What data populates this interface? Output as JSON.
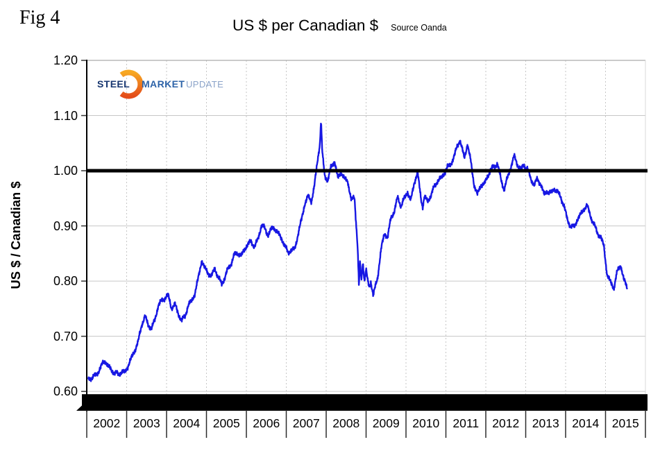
{
  "header": {
    "fig_label": "Fig 4",
    "title": "US $ per Canadian $",
    "source": "Source Oanda"
  },
  "logo": {
    "words": {
      "first": "STEEL",
      "second": "MARKET",
      "third": "UPDATE"
    },
    "colors": {
      "steel": "#16356f",
      "market": "#2d63a8",
      "update": "#8ba3c9",
      "swoosh_top": "#f7a823",
      "swoosh_bottom": "#e44d1a"
    }
  },
  "chart_data": {
    "type": "line",
    "title": "US $ per Canadian $",
    "source": "Source Oanda",
    "ylabel": "US $ / Canadian $",
    "xlabel": "",
    "ylim": [
      0.565,
      1.2
    ],
    "xlim": [
      2002,
      2016
    ],
    "yticks": [
      1.2,
      1.1,
      1.0,
      0.9,
      0.8,
      0.7,
      0.6
    ],
    "ytick_labels": [
      "1.20",
      "1.10",
      "1.00",
      "0.90",
      "0.80",
      "0.70",
      "0.60"
    ],
    "x_years": [
      "2002",
      "2003",
      "2004",
      "2005",
      "2006",
      "2007",
      "2008",
      "2009",
      "2010",
      "2011",
      "2012",
      "2013",
      "2014",
      "2015"
    ],
    "grid": {
      "horizontal": "solid",
      "vertical": "dashed",
      "color": "#c6c6c6"
    },
    "reference_line": {
      "value": 1.0,
      "color": "#000000",
      "thickness_px": 5
    },
    "bottom_bar": {
      "value_top": 0.595,
      "value_bottom": 0.565,
      "color": "#000000"
    },
    "series": [
      {
        "name": "US $ per Canadian $",
        "color": "#1717e3",
        "anchors": [
          [
            2002.04,
            0.622
          ],
          [
            2002.12,
            0.625
          ],
          [
            2002.21,
            0.628
          ],
          [
            2002.29,
            0.636
          ],
          [
            2002.38,
            0.648
          ],
          [
            2002.46,
            0.656
          ],
          [
            2002.54,
            0.645
          ],
          [
            2002.63,
            0.638
          ],
          [
            2002.71,
            0.633
          ],
          [
            2002.79,
            0.631
          ],
          [
            2002.88,
            0.636
          ],
          [
            2002.96,
            0.634
          ],
          [
            2003.04,
            0.648
          ],
          [
            2003.12,
            0.66
          ],
          [
            2003.21,
            0.676
          ],
          [
            2003.29,
            0.69
          ],
          [
            2003.38,
            0.722
          ],
          [
            2003.46,
            0.736
          ],
          [
            2003.54,
            0.72
          ],
          [
            2003.63,
            0.715
          ],
          [
            2003.71,
            0.73
          ],
          [
            2003.79,
            0.756
          ],
          [
            2003.88,
            0.764
          ],
          [
            2003.96,
            0.77
          ],
          [
            2004.04,
            0.774
          ],
          [
            2004.12,
            0.752
          ],
          [
            2004.21,
            0.757
          ],
          [
            2004.29,
            0.742
          ],
          [
            2004.38,
            0.728
          ],
          [
            2004.46,
            0.736
          ],
          [
            2004.54,
            0.756
          ],
          [
            2004.63,
            0.764
          ],
          [
            2004.71,
            0.778
          ],
          [
            2004.79,
            0.803
          ],
          [
            2004.88,
            0.838
          ],
          [
            2004.96,
            0.822
          ],
          [
            2005.04,
            0.816
          ],
          [
            2005.12,
            0.807
          ],
          [
            2005.21,
            0.824
          ],
          [
            2005.29,
            0.807
          ],
          [
            2005.38,
            0.795
          ],
          [
            2005.46,
            0.806
          ],
          [
            2005.54,
            0.822
          ],
          [
            2005.63,
            0.834
          ],
          [
            2005.71,
            0.849
          ],
          [
            2005.79,
            0.851
          ],
          [
            2005.88,
            0.845
          ],
          [
            2005.96,
            0.86
          ],
          [
            2006.04,
            0.866
          ],
          [
            2006.12,
            0.872
          ],
          [
            2006.21,
            0.862
          ],
          [
            2006.29,
            0.876
          ],
          [
            2006.38,
            0.902
          ],
          [
            2006.46,
            0.895
          ],
          [
            2006.54,
            0.884
          ],
          [
            2006.63,
            0.894
          ],
          [
            2006.71,
            0.897
          ],
          [
            2006.79,
            0.886
          ],
          [
            2006.88,
            0.878
          ],
          [
            2006.96,
            0.864
          ],
          [
            2007.04,
            0.852
          ],
          [
            2007.12,
            0.856
          ],
          [
            2007.21,
            0.857
          ],
          [
            2007.29,
            0.884
          ],
          [
            2007.38,
            0.91
          ],
          [
            2007.46,
            0.94
          ],
          [
            2007.54,
            0.953
          ],
          [
            2007.63,
            0.945
          ],
          [
            2007.71,
            0.975
          ],
          [
            2007.79,
            1.022
          ],
          [
            2007.845,
            1.052
          ],
          [
            2007.87,
            1.091
          ],
          [
            2007.9,
            1.035
          ],
          [
            2007.96,
            0.992
          ],
          [
            2008.04,
            0.982
          ],
          [
            2008.12,
            1.006
          ],
          [
            2008.21,
            1.018
          ],
          [
            2008.29,
            0.986
          ],
          [
            2008.38,
            0.998
          ],
          [
            2008.46,
            0.984
          ],
          [
            2008.54,
            0.982
          ],
          [
            2008.63,
            0.946
          ],
          [
            2008.71,
            0.952
          ],
          [
            2008.79,
            0.86
          ],
          [
            2008.82,
            0.79
          ],
          [
            2008.85,
            0.835
          ],
          [
            2008.88,
            0.8
          ],
          [
            2008.92,
            0.835
          ],
          [
            2008.96,
            0.8
          ],
          [
            2009.0,
            0.82
          ],
          [
            2009.04,
            0.8
          ],
          [
            2009.08,
            0.79
          ],
          [
            2009.12,
            0.8
          ],
          [
            2009.18,
            0.772
          ],
          [
            2009.23,
            0.79
          ],
          [
            2009.29,
            0.808
          ],
          [
            2009.38,
            0.858
          ],
          [
            2009.46,
            0.888
          ],
          [
            2009.54,
            0.878
          ],
          [
            2009.63,
            0.918
          ],
          [
            2009.71,
            0.926
          ],
          [
            2009.79,
            0.952
          ],
          [
            2009.88,
            0.936
          ],
          [
            2009.96,
            0.95
          ],
          [
            2010.04,
            0.962
          ],
          [
            2010.12,
            0.945
          ],
          [
            2010.21,
            0.98
          ],
          [
            2010.29,
            0.996
          ],
          [
            2010.38,
            0.948
          ],
          [
            2010.42,
            0.935
          ],
          [
            2010.46,
            0.952
          ],
          [
            2010.54,
            0.945
          ],
          [
            2010.63,
            0.956
          ],
          [
            2010.71,
            0.971
          ],
          [
            2010.79,
            0.982
          ],
          [
            2010.88,
            0.986
          ],
          [
            2010.96,
            0.996
          ],
          [
            2011.04,
            1.006
          ],
          [
            2011.12,
            1.012
          ],
          [
            2011.21,
            1.026
          ],
          [
            2011.29,
            1.046
          ],
          [
            2011.35,
            1.056
          ],
          [
            2011.46,
            1.023
          ],
          [
            2011.54,
            1.048
          ],
          [
            2011.63,
            1.014
          ],
          [
            2011.71,
            0.974
          ],
          [
            2011.79,
            0.956
          ],
          [
            2011.88,
            0.976
          ],
          [
            2011.96,
            0.974
          ],
          [
            2012.04,
            0.99
          ],
          [
            2012.12,
            1.001
          ],
          [
            2012.21,
            1.008
          ],
          [
            2012.29,
            1.013
          ],
          [
            2012.38,
            0.984
          ],
          [
            2012.46,
            0.966
          ],
          [
            2012.54,
            0.986
          ],
          [
            2012.63,
            1.008
          ],
          [
            2012.71,
            1.026
          ],
          [
            2012.79,
            1.012
          ],
          [
            2012.88,
            1.002
          ],
          [
            2012.96,
            1.01
          ],
          [
            2013.04,
            1.004
          ],
          [
            2013.12,
            0.986
          ],
          [
            2013.21,
            0.975
          ],
          [
            2013.29,
            0.984
          ],
          [
            2013.38,
            0.976
          ],
          [
            2013.46,
            0.956
          ],
          [
            2013.54,
            0.964
          ],
          [
            2013.63,
            0.958
          ],
          [
            2013.71,
            0.968
          ],
          [
            2013.79,
            0.962
          ],
          [
            2013.88,
            0.952
          ],
          [
            2013.96,
            0.936
          ],
          [
            2014.04,
            0.912
          ],
          [
            2014.12,
            0.9
          ],
          [
            2014.21,
            0.897
          ],
          [
            2014.29,
            0.912
          ],
          [
            2014.38,
            0.92
          ],
          [
            2014.46,
            0.932
          ],
          [
            2014.54,
            0.936
          ],
          [
            2014.63,
            0.917
          ],
          [
            2014.71,
            0.903
          ],
          [
            2014.79,
            0.888
          ],
          [
            2014.88,
            0.88
          ],
          [
            2014.96,
            0.862
          ],
          [
            2015.04,
            0.812
          ],
          [
            2015.12,
            0.798
          ],
          [
            2015.21,
            0.788
          ],
          [
            2015.29,
            0.816
          ],
          [
            2015.38,
            0.83
          ],
          [
            2015.46,
            0.802
          ],
          [
            2015.54,
            0.788
          ]
        ]
      }
    ]
  }
}
